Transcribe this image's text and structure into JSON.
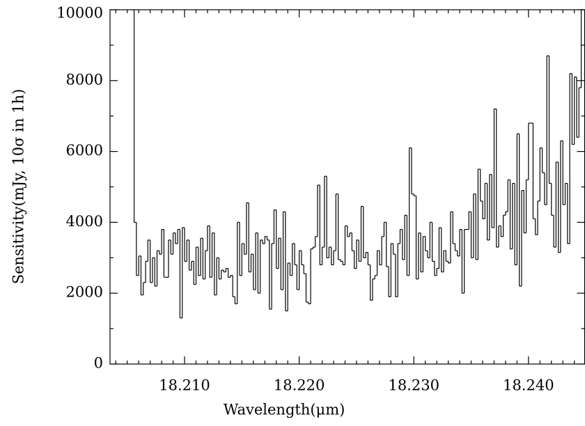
{
  "chart_data": {
    "type": "step",
    "xlabel": "Wavelength(μm)",
    "ylabel": "Sensitivity(mJy, 10σ in 1h)",
    "color": "#000000",
    "xlim": [
      18.2035,
      18.2449
    ],
    "ylim": [
      0,
      10000
    ],
    "xticks": [
      {
        "value": 18.21,
        "label": "18.210"
      },
      {
        "value": 18.22,
        "label": "18.220"
      },
      {
        "value": 18.23,
        "label": "18.230"
      },
      {
        "value": 18.24,
        "label": "18.240"
      }
    ],
    "xminorticks": [
      18.204,
      18.205,
      18.206,
      18.207,
      18.208,
      18.209,
      18.211,
      18.212,
      18.213,
      18.214,
      18.215,
      18.216,
      18.217,
      18.218,
      18.219,
      18.221,
      18.222,
      18.223,
      18.224,
      18.225,
      18.226,
      18.227,
      18.228,
      18.229,
      18.231,
      18.232,
      18.233,
      18.234,
      18.235,
      18.236,
      18.237,
      18.238,
      18.239,
      18.241,
      18.242,
      18.243,
      18.244
    ],
    "yticks": [
      0,
      2000,
      4000,
      6000,
      8000,
      10000
    ],
    "yminorticks": [
      1000,
      3000,
      5000,
      7000,
      9000
    ],
    "x": [
      18.2054,
      18.2056,
      18.2058,
      18.206,
      18.2062,
      18.2064,
      18.2066,
      18.2068,
      18.207,
      18.2072,
      18.2074,
      18.2076,
      18.2078,
      18.208,
      18.2082,
      18.2084,
      18.2086,
      18.2088,
      18.209,
      18.2092,
      18.2094,
      18.2096,
      18.2098,
      18.21,
      18.2102,
      18.2104,
      18.2106,
      18.2108,
      18.211,
      18.2112,
      18.2114,
      18.2116,
      18.2118,
      18.212,
      18.2122,
      18.2124,
      18.2126,
      18.2128,
      18.213,
      18.2132,
      18.2134,
      18.2136,
      18.2138,
      18.214,
      18.2142,
      18.2144,
      18.2146,
      18.2148,
      18.215,
      18.2152,
      18.2154,
      18.2156,
      18.2158,
      18.216,
      18.2162,
      18.2164,
      18.2166,
      18.2168,
      18.217,
      18.2172,
      18.2174,
      18.2176,
      18.2178,
      18.218,
      18.2182,
      18.2184,
      18.2186,
      18.2188,
      18.219,
      18.2192,
      18.2194,
      18.2196,
      18.2198,
      18.22,
      18.2202,
      18.2204,
      18.2206,
      18.2208,
      18.221,
      18.2212,
      18.2214,
      18.2216,
      18.2218,
      18.222,
      18.2222,
      18.2224,
      18.2226,
      18.2228,
      18.223,
      18.2232,
      18.2234,
      18.2236,
      18.2238,
      18.224,
      18.2242,
      18.2244,
      18.2246,
      18.2248,
      18.225,
      18.2252,
      18.2254,
      18.2256,
      18.2258,
      18.226,
      18.2262,
      18.2264,
      18.2266,
      18.2268,
      18.227,
      18.2272,
      18.2274,
      18.2276,
      18.2278,
      18.228,
      18.2282,
      18.2284,
      18.2286,
      18.2288,
      18.229,
      18.2292,
      18.2294,
      18.2296,
      18.2298,
      18.23,
      18.2302,
      18.2304,
      18.2306,
      18.2308,
      18.231,
      18.2312,
      18.2314,
      18.2316,
      18.2318,
      18.232,
      18.2322,
      18.2324,
      18.2326,
      18.2328,
      18.233,
      18.2332,
      18.2334,
      18.2336,
      18.2338,
      18.234,
      18.2342,
      18.2344,
      18.2346,
      18.2348,
      18.235,
      18.2352,
      18.2354,
      18.2356,
      18.2358,
      18.236,
      18.2362,
      18.2364,
      18.2366,
      18.2368,
      18.237,
      18.2372,
      18.2374,
      18.2376,
      18.2378,
      18.238,
      18.2382,
      18.2384,
      18.2386,
      18.2388,
      18.239,
      18.2392,
      18.2394,
      18.2396,
      18.2398,
      18.24,
      18.2402,
      18.2404,
      18.2406,
      18.2408,
      18.241,
      18.2412,
      18.2414,
      18.2416,
      18.2418,
      18.242,
      18.2422,
      18.2424,
      18.2426,
      18.2428,
      18.243,
      18.2432,
      18.2434,
      18.2436,
      18.2438,
      18.244,
      18.2442,
      18.2444,
      18.2446,
      18.2448
    ],
    "values": [
      10000,
      4000,
      2500,
      3050,
      1950,
      2300,
      2900,
      3500,
      2300,
      3000,
      2200,
      3200,
      3100,
      3800,
      2450,
      2450,
      3500,
      3100,
      3700,
      3400,
      3800,
      1300,
      3850,
      2900,
      3500,
      2650,
      2900,
      2250,
      3300,
      2500,
      3550,
      2400,
      3200,
      3900,
      2450,
      3700,
      1950,
      3000,
      2400,
      2650,
      2600,
      2700,
      2450,
      2500,
      1900,
      1700,
      4000,
      2500,
      3400,
      3100,
      4550,
      2600,
      3100,
      2100,
      3700,
      2000,
      3500,
      3400,
      3600,
      3500,
      1550,
      3400,
      4350,
      2700,
      3550,
      2100,
      4300,
      1500,
      2850,
      2500,
      3400,
      2800,
      2100,
      3200,
      2800,
      2550,
      1750,
      1700,
      3250,
      3300,
      3600,
      5050,
      2800,
      3300,
      5300,
      3000,
      3300,
      2800,
      3200,
      4800,
      2950,
      2900,
      2800,
      3900,
      3600,
      3700,
      3200,
      2700,
      3500,
      2900,
      4450,
      3000,
      3150,
      2800,
      1800,
      2400,
      2500,
      3200,
      2800,
      3600,
      4000,
      2750,
      1900,
      3400,
      3100,
      1900,
      3400,
      3800,
      2950,
      4200,
      2500,
      6100,
      4800,
      4750,
      2400,
      3700,
      2600,
      3600,
      3200,
      3000,
      4000,
      2900,
      2500,
      2700,
      3850,
      2600,
      3200,
      2900,
      2850,
      4300,
      3400,
      3200,
      3050,
      3800,
      2000,
      3800,
      3800,
      4300,
      3000,
      4800,
      2950,
      5500,
      4600,
      4100,
      5100,
      3500,
      5350,
      3850,
      7200,
      3300,
      3900,
      3600,
      4200,
      4300,
      5200,
      3250,
      5100,
      2800,
      6500,
      2200,
      4900,
      3700,
      5200,
      6800,
      6800,
      4100,
      3650,
      4600,
      6100,
      5400,
      4500,
      8700,
      5100,
      4200,
      3300,
      5700,
      3150,
      6300,
      4500,
      5100,
      3400,
      8200,
      6200,
      8100,
      6400,
      7800,
      10000,
      10000
    ]
  }
}
